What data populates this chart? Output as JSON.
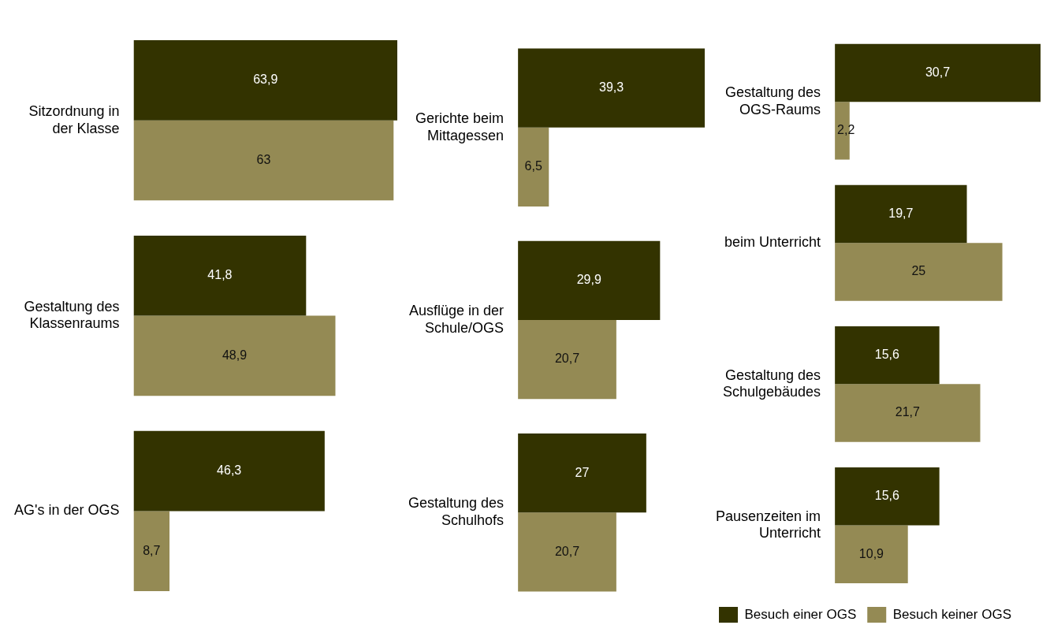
{
  "chart_data": [
    {
      "type": "bar",
      "orientation": "horizontal",
      "categories": [
        "Sitzordnung in der Klasse",
        "Gestaltung des Klassenraums",
        "AG's in der OGS"
      ],
      "series": [
        {
          "color": "#333300",
          "values": [
            63.9,
            41.8,
            46.3
          ],
          "value_labels": [
            "63,9",
            "41,8",
            "46,3"
          ]
        },
        {
          "color": "#948a54",
          "values": [
            63,
            48.9,
            8.7
          ],
          "value_labels": [
            "63",
            "48,9",
            "8,7"
          ]
        }
      ]
    },
    {
      "type": "bar",
      "orientation": "horizontal",
      "categories": [
        "Gerichte beim Mittagessen",
        "Ausflüge in der Schule/OGS",
        "Gestaltung des Schulhofs"
      ],
      "series": [
        {
          "color": "#333300",
          "values": [
            39.3,
            29.9,
            27
          ],
          "value_labels": [
            "39,3",
            "29,9",
            "27"
          ]
        },
        {
          "color": "#948a54",
          "values": [
            6.5,
            20.7,
            20.7
          ],
          "value_labels": [
            "6,5",
            "20,7",
            "20,7"
          ]
        }
      ]
    },
    {
      "type": "bar",
      "orientation": "horizontal",
      "categories": [
        "Gestaltung des OGS-Raums",
        "beim Unterricht",
        "Gestaltung des Schulgebäudes",
        "Pausenzeiten im Unterricht"
      ],
      "legend": "bottom left",
      "series": [
        {
          "name": "Besuch einer OGS",
          "color": "#333300",
          "values": [
            30.7,
            19.7,
            15.6,
            15.6
          ],
          "value_labels": [
            "30,7",
            "19,7",
            "15,6",
            "15,6"
          ]
        },
        {
          "name": "Besuch keiner OGS",
          "color": "#948a54",
          "values": [
            2.2,
            25,
            21.7,
            10.9
          ],
          "value_labels": [
            "2,2",
            "25",
            "21,7",
            "10,9"
          ]
        }
      ]
    }
  ]
}
